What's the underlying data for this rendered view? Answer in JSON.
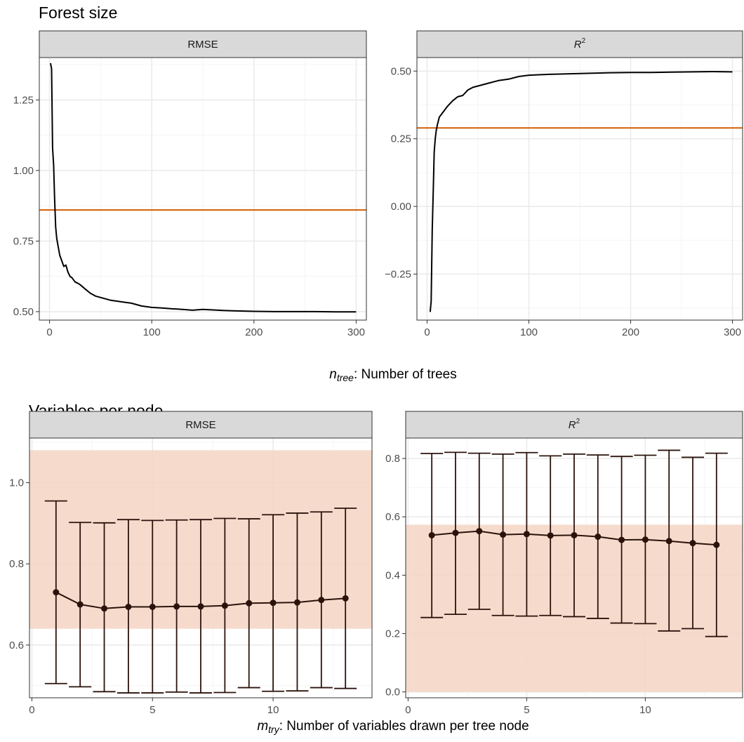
{
  "figure": {
    "top_title": "Forest size",
    "bottom_title": "Variables per node",
    "top_xlabel_var": "n",
    "top_xlabel_sub": "tree",
    "top_xlabel_text": ": Number of trees",
    "bottom_xlabel_var": "m",
    "bottom_xlabel_sub": "try",
    "bottom_xlabel_text": ": Number of variables drawn per tree node"
  },
  "colors": {
    "line": "#000000",
    "reference": "#d55e00",
    "band": "#f4d5c3",
    "point": "#2b130c",
    "strip": "#d9d9d9",
    "grid_major": "#ebebeb",
    "grid_minor": "#f5f5f5",
    "panel_border": "#333333"
  },
  "chart_data": [
    {
      "type": "line",
      "panel": "top-left",
      "strip": "RMSE",
      "xlim": [
        -10,
        310
      ],
      "ylim": [
        0.47,
        1.4
      ],
      "xticks": [
        0,
        100,
        200,
        300
      ],
      "xtick_labels": [
        "0",
        "100",
        "200",
        "300"
      ],
      "yticks": [
        0.5,
        0.75,
        1.0,
        1.25
      ],
      "ytick_labels": [
        "0.50",
        "0.75",
        "1.00",
        "1.25"
      ],
      "reference_line": 0.86,
      "x": [
        1,
        2,
        3,
        4,
        5,
        6,
        7,
        8,
        10,
        12,
        14,
        16,
        18,
        20,
        22,
        25,
        28,
        30,
        35,
        40,
        45,
        50,
        55,
        60,
        70,
        80,
        90,
        100,
        110,
        120,
        130,
        140,
        150,
        160,
        170,
        180,
        190,
        200,
        220,
        240,
        260,
        280,
        300
      ],
      "y": [
        1.38,
        1.36,
        1.08,
        1.02,
        0.9,
        0.8,
        0.76,
        0.74,
        0.7,
        0.68,
        0.66,
        0.665,
        0.64,
        0.625,
        0.62,
        0.605,
        0.6,
        0.595,
        0.58,
        0.565,
        0.555,
        0.55,
        0.545,
        0.54,
        0.535,
        0.53,
        0.52,
        0.515,
        0.513,
        0.51,
        0.508,
        0.505,
        0.508,
        0.506,
        0.504,
        0.503,
        0.502,
        0.501,
        0.5,
        0.5,
        0.5,
        0.499,
        0.499
      ]
    },
    {
      "type": "line",
      "panel": "top-right",
      "strip_var": "R",
      "strip_sup": "2",
      "xlim": [
        -10,
        310
      ],
      "ylim": [
        -0.42,
        0.55
      ],
      "xticks": [
        0,
        100,
        200,
        300
      ],
      "xtick_labels": [
        "0",
        "100",
        "200",
        "300"
      ],
      "yticks": [
        -0.25,
        0.0,
        0.25,
        0.5
      ],
      "ytick_labels": [
        "−0.25",
        "0.00",
        "0.25",
        "0.50"
      ],
      "reference_line": 0.29,
      "x": [
        3,
        4,
        5,
        6,
        7,
        8,
        9,
        10,
        12,
        14,
        16,
        18,
        20,
        25,
        30,
        35,
        40,
        45,
        50,
        60,
        70,
        80,
        90,
        100,
        120,
        140,
        160,
        180,
        200,
        220,
        240,
        260,
        280,
        300
      ],
      "y": [
        -0.39,
        -0.35,
        -0.09,
        0.05,
        0.2,
        0.25,
        0.28,
        0.3,
        0.33,
        0.34,
        0.35,
        0.36,
        0.37,
        0.39,
        0.405,
        0.41,
        0.43,
        0.44,
        0.445,
        0.455,
        0.465,
        0.47,
        0.48,
        0.485,
        0.488,
        0.49,
        0.492,
        0.494,
        0.495,
        0.495,
        0.496,
        0.497,
        0.498,
        0.497
      ]
    },
    {
      "type": "scatter",
      "panel": "bottom-left",
      "strip": "RMSE",
      "xlim": [
        -0.1,
        14.1
      ],
      "ylim": [
        0.47,
        1.11
      ],
      "xticks": [
        0,
        5,
        10
      ],
      "xtick_labels": [
        "0",
        "5",
        "10"
      ],
      "yticks": [
        0.6,
        0.8,
        1.0
      ],
      "ytick_labels": [
        "0.6",
        "0.8",
        "1.0"
      ],
      "band": [
        0.64,
        1.08
      ],
      "x": [
        1,
        2,
        3,
        4,
        5,
        6,
        7,
        8,
        9,
        10,
        11,
        12,
        13
      ],
      "y": [
        0.73,
        0.7,
        0.69,
        0.694,
        0.694,
        0.695,
        0.695,
        0.697,
        0.703,
        0.704,
        0.705,
        0.711,
        0.715
      ],
      "lower": [
        0.505,
        0.497,
        0.485,
        0.482,
        0.482,
        0.484,
        0.482,
        0.483,
        0.495,
        0.486,
        0.487,
        0.495,
        0.493
      ],
      "upper": [
        0.955,
        0.902,
        0.901,
        0.909,
        0.907,
        0.908,
        0.909,
        0.912,
        0.911,
        0.921,
        0.925,
        0.928,
        0.937
      ]
    },
    {
      "type": "scatter",
      "panel": "bottom-right",
      "strip_var": "R",
      "strip_sup": "2",
      "xlim": [
        -0.1,
        14.1
      ],
      "ylim": [
        -0.02,
        0.87
      ],
      "xticks": [
        0,
        5,
        10
      ],
      "xtick_labels": [
        "0",
        "5",
        "10"
      ],
      "yticks": [
        0.0,
        0.2,
        0.4,
        0.6,
        0.8
      ],
      "ytick_labels": [
        "0.0",
        "0.2",
        "0.4",
        "0.6",
        "0.8"
      ],
      "band": [
        0.0,
        0.573
      ],
      "x": [
        1,
        2,
        3,
        4,
        5,
        6,
        7,
        8,
        9,
        10,
        11,
        12,
        13
      ],
      "y": [
        0.537,
        0.545,
        0.551,
        0.539,
        0.541,
        0.536,
        0.537,
        0.532,
        0.521,
        0.522,
        0.517,
        0.51,
        0.504
      ],
      "lower": [
        0.255,
        0.266,
        0.283,
        0.262,
        0.26,
        0.262,
        0.258,
        0.252,
        0.236,
        0.234,
        0.209,
        0.217,
        0.19
      ],
      "upper": [
        0.817,
        0.821,
        0.818,
        0.815,
        0.82,
        0.809,
        0.815,
        0.812,
        0.807,
        0.811,
        0.828,
        0.804,
        0.818
      ]
    }
  ]
}
